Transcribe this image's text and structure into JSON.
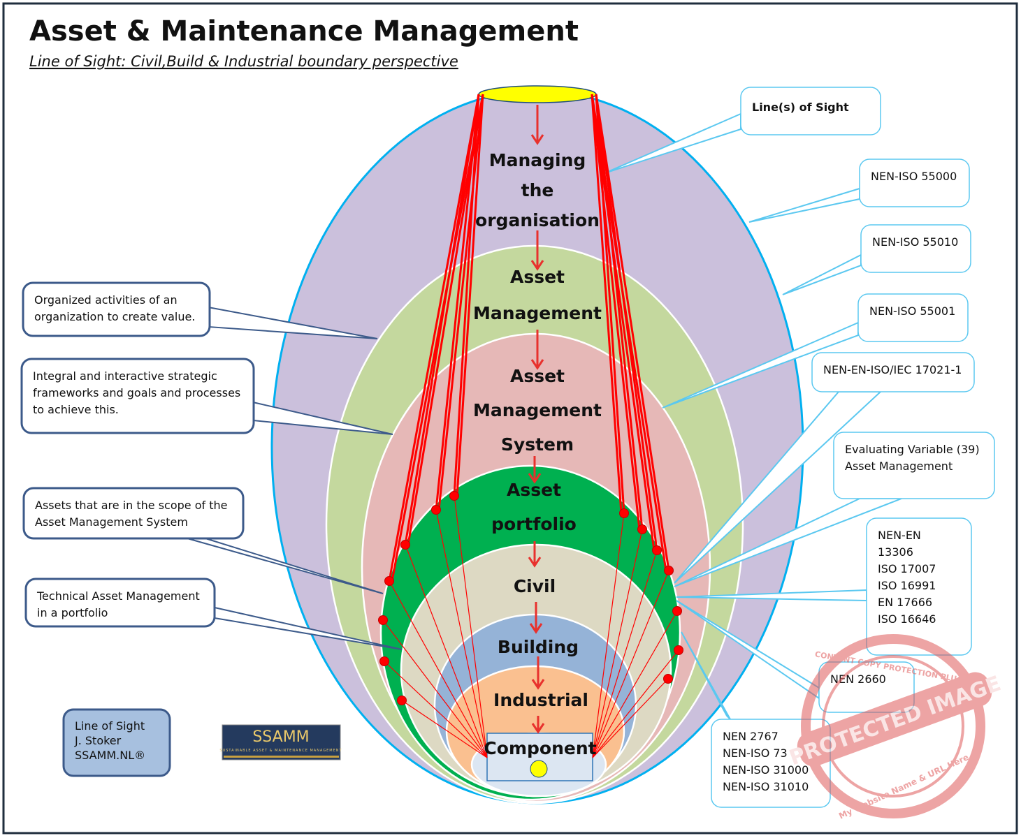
{
  "header": {
    "title": "Asset & Maintenance Management",
    "subtitle": "Line of Sight: Civil,Build & Industrial boundary perspective"
  },
  "layers": [
    {
      "lines": [
        "Managing",
        "the",
        "organisation"
      ],
      "color": "#cbc0dc"
    },
    {
      "lines": [
        "Asset",
        "Management"
      ],
      "color": "#c4d89e"
    },
    {
      "lines": [
        "Asset",
        "Management",
        "System"
      ],
      "color": "#e6b8b7"
    },
    {
      "lines": [
        "Asset",
        "portfolio"
      ],
      "color": "#00b050"
    },
    {
      "lines": [
        "Civil"
      ],
      "color": "#ddd9c3"
    },
    {
      "lines": [
        "Building"
      ],
      "color": "#95b3d7"
    },
    {
      "lines": [
        "Industrial"
      ],
      "color": "#fac090"
    },
    {
      "lines": [
        "Component"
      ],
      "color": "#dce6f2"
    }
  ],
  "left_callouts": [
    {
      "lines": [
        "Organized activities of an",
        "organization to create value."
      ]
    },
    {
      "lines": [
        "Integral and interactive strategic",
        "frameworks and goals and processes",
        "to achieve this."
      ]
    },
    {
      "lines": [
        "Assets that are in the scope of the",
        "Asset Management System"
      ]
    },
    {
      "lines": [
        "Technical Asset Management",
        "in a portfolio"
      ]
    }
  ],
  "right_callouts": [
    {
      "lines": [
        "Line(s) of Sight"
      ]
    },
    {
      "lines": [
        "NEN-ISO 55000"
      ]
    },
    {
      "lines": [
        "NEN-ISO 55010"
      ]
    },
    {
      "lines": [
        "NEN-ISO 55001"
      ]
    },
    {
      "lines": [
        "NEN-EN-ISO/IEC 17021-1"
      ]
    },
    {
      "lines": [
        "Evaluating Variable (39)",
        "Asset Management"
      ]
    },
    {
      "lines": [
        "NEN-EN",
        "13306",
        "ISO 17007",
        "ISO 16991",
        "EN 17666",
        "ISO 16646"
      ]
    },
    {
      "lines": [
        "NEN 2660"
      ]
    },
    {
      "lines": [
        "NEN 2767",
        "NEN-ISO 73",
        "NEN-ISO 31000",
        "NEN-ISO 31010"
      ]
    }
  ],
  "credit": {
    "lines": [
      "Line of Sight",
      "J. Stoker",
      "SSAMM.NL®"
    ]
  },
  "logo": {
    "name": "SSAMM",
    "tagline": "SUSTAINABLE ASSET & MAINTENANCE MANAGEMENT"
  },
  "watermark": {
    "text": "PROTECTED IMAGE",
    "ring_top": "CONTENT COPY PROTECTION PLUGIN",
    "ring_bottom": "My Website Name & URL Here"
  },
  "colors": {
    "line_of_sight": "#ff0000",
    "outer_border": "#00b0f0",
    "left_callout_border": "#3c5a8a",
    "right_callout_border": "#5bc8f0"
  }
}
